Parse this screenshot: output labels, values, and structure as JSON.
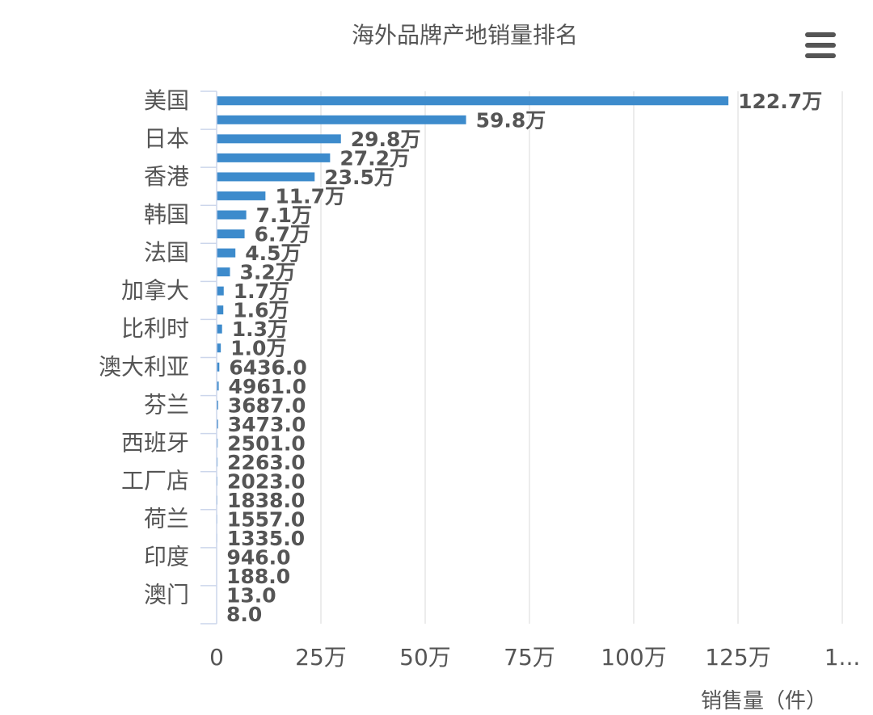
{
  "title": "海外品牌产地销量排名",
  "menu_icon": "hamburger-menu-icon",
  "colors": {
    "bar": "#3d8bcc",
    "grid": "#e6e6e6",
    "axis": "#ccd6eb",
    "text": "#555555"
  },
  "chart_data": {
    "type": "bar",
    "orientation": "horizontal",
    "title": "海外品牌产地销量排名",
    "xlabel": "销售量（件）",
    "xlim": [
      0,
      1500000
    ],
    "xticks": [
      "0",
      "25万",
      "50万",
      "75万",
      "100万",
      "125万",
      "1..."
    ],
    "grid": true,
    "legend": "none",
    "categories": [
      "美国",
      "",
      "日本",
      "",
      "香港",
      "",
      "韩国",
      "",
      "法国",
      "",
      "加拿大",
      "",
      "比利时",
      "",
      "澳大利亚",
      "",
      "芬兰",
      "",
      "西班牙",
      "",
      "工厂店",
      "",
      "荷兰",
      "",
      "印度",
      "",
      "澳门",
      ""
    ],
    "values": [
      1227000,
      598000,
      298000,
      272000,
      235000,
      117000,
      71000,
      67000,
      45000,
      32000,
      17000,
      16000,
      13000,
      10000,
      6436,
      4961,
      3687,
      3473,
      2501,
      2263,
      2023,
      1838,
      1557,
      1335,
      946,
      188,
      13,
      8
    ],
    "data_labels": [
      "122.7万",
      "59.8万",
      "29.8万",
      "27.2万",
      "23.5万",
      "11.7万",
      "7.1万",
      "6.7万",
      "4.5万",
      "3.2万",
      "1.7万",
      "1.6万",
      "1.3万",
      "1.0万",
      "6436.0",
      "4961.0",
      "3687.0",
      "3473.0",
      "2501.0",
      "2263.0",
      "2023.0",
      "1838.0",
      "1557.0",
      "1335.0",
      "946.0",
      "188.0",
      "13.0",
      "8.0"
    ]
  },
  "footer": {
    "axis_title": "销售量（件）"
  }
}
